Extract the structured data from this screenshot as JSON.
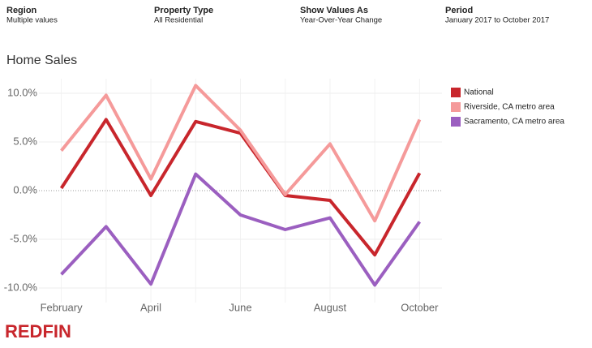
{
  "filters": [
    {
      "label": "Region",
      "value": "Multiple values"
    },
    {
      "label": "Property Type",
      "value": "All Residential"
    },
    {
      "label": "Show Values As",
      "value": "Year-Over-Year Change"
    },
    {
      "label": "Period",
      "value": "January 2017 to October 2017"
    }
  ],
  "logo": "REDFIN",
  "chart_data": {
    "type": "line",
    "title": "Home Sales",
    "categories": [
      "February",
      null,
      "April",
      null,
      "June",
      null,
      "August",
      null,
      "October"
    ],
    "series": [
      {
        "name": "National",
        "color": "#c8262c",
        "values": [
          0.25,
          7.3,
          -0.5,
          7.1,
          5.9,
          -0.5,
          -1.0,
          -6.6,
          1.8
        ]
      },
      {
        "name": "Riverside, CA metro area",
        "color": "#f59a9a",
        "values": [
          4.1,
          9.8,
          1.2,
          10.8,
          6.2,
          -0.4,
          4.8,
          -3.1,
          7.3
        ]
      },
      {
        "name": "Sacramento, CA metro area",
        "color": "#9b5fc0",
        "values": [
          -8.6,
          -3.7,
          -9.6,
          1.7,
          -2.5,
          -4.0,
          -2.8,
          -9.7,
          -3.2
        ]
      }
    ],
    "ylim": [
      -11.5,
      11.5
    ],
    "yticks": [
      {
        "value": 10,
        "label": "10.0%"
      },
      {
        "value": 5,
        "label": "5.0%"
      },
      {
        "value": 0,
        "label": "0.0%"
      },
      {
        "value": -5,
        "label": "-5.0%"
      },
      {
        "value": -10,
        "label": "-10.0%"
      }
    ],
    "grid": true,
    "legend": "top-right"
  }
}
